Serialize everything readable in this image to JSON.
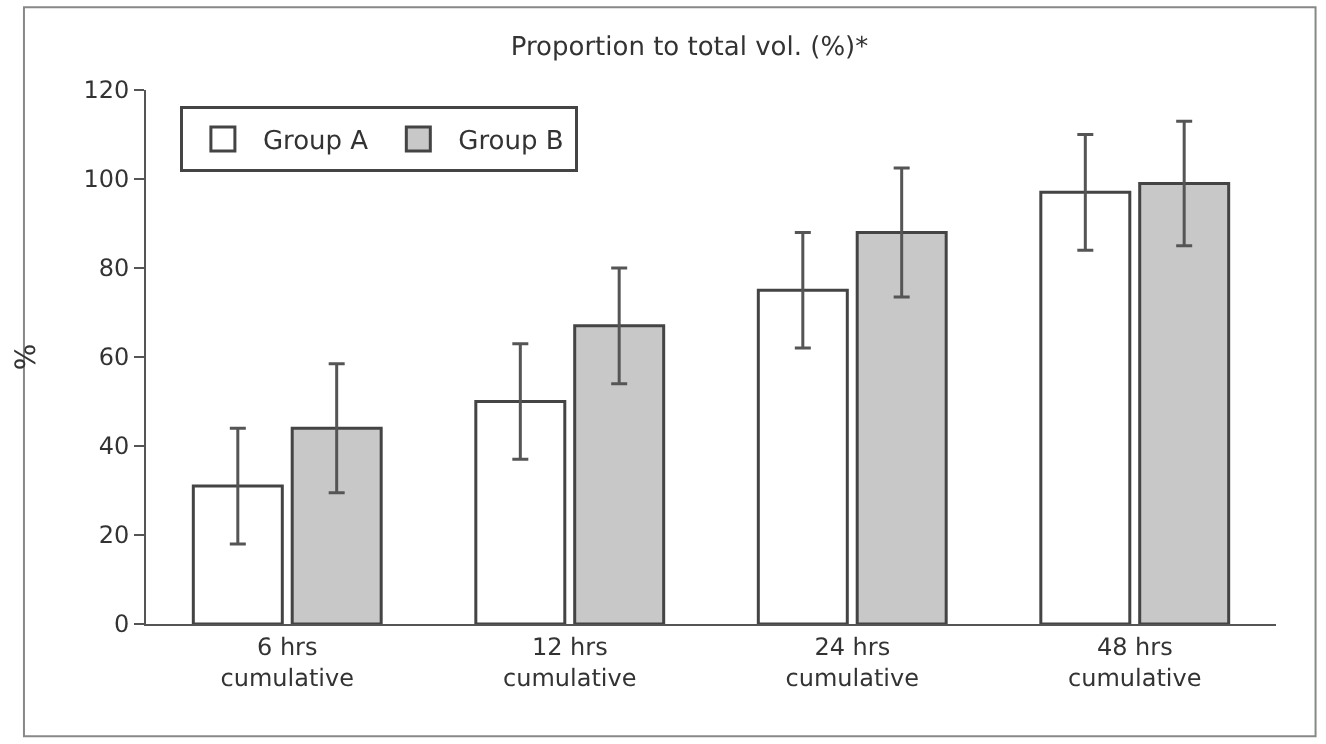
{
  "chart_data": {
    "type": "bar",
    "title": "Proportion to total vol. (%)*",
    "ylabel": "%",
    "categories": [
      "6 hrs\ncumulative",
      "12 hrs\ncumulative",
      "24 hrs\ncumulative",
      "48 hrs\ncumulative"
    ],
    "series": [
      {
        "name": "Group A",
        "color": "#ffffff",
        "values": [
          31,
          50,
          75,
          97
        ],
        "errors": [
          13,
          13,
          13,
          13
        ]
      },
      {
        "name": "Group B",
        "color": "#c8c8c8",
        "values": [
          44,
          67,
          88,
          99
        ],
        "errors": [
          14.5,
          13,
          14.5,
          14
        ]
      }
    ],
    "ylim": [
      0,
      120
    ],
    "yticks": [
      0,
      20,
      40,
      60,
      80,
      100,
      120
    ],
    "legend": "top left"
  }
}
